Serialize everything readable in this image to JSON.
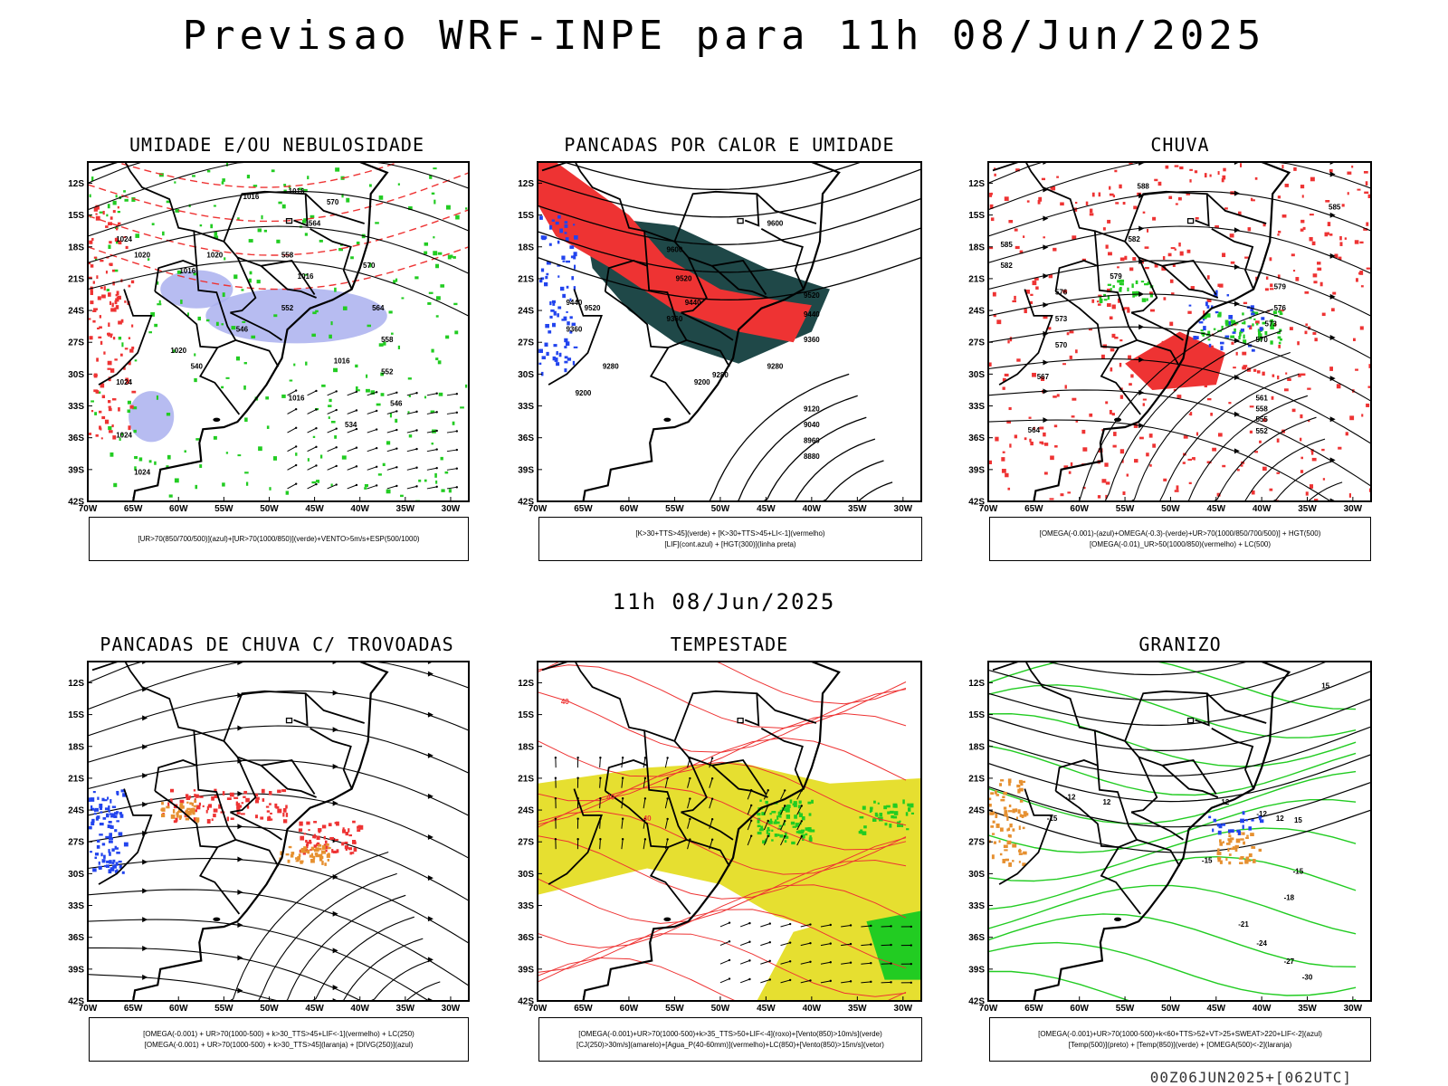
{
  "page": {
    "title": "Previsao WRF-INPE  para 11h 08/Jun/2025",
    "mid_title": "11h 08/Jun/2025",
    "footer": "00Z06JUN2025+[062UTC]"
  },
  "colors": {
    "green": "#22cc22",
    "blue": "#2244ee",
    "red": "#ee3333",
    "lavender": "#aab0ee",
    "darkteal": "#1f4848",
    "orange": "#e69030",
    "yellow": "#e6df30",
    "black": "#000000"
  },
  "chart_data": [
    {
      "type": "map",
      "title": "UMIDADE E/OU NEBULOSIDADE",
      "lat_ticks": [
        "12S",
        "15S",
        "18S",
        "21S",
        "24S",
        "27S",
        "30S",
        "33S",
        "36S",
        "39S",
        "42S"
      ],
      "lon_ticks": [
        "70W",
        "65W",
        "60W",
        "55W",
        "50W",
        "45W",
        "40W",
        "35W",
        "30W"
      ],
      "legend": [
        "[UR>70(850/700/500)](azul)+[UR>70(1000/850)](verde)+VENTO>5m/s+ESP(500/1000)"
      ],
      "contour_labels": [
        "1016",
        "1016",
        "1016",
        "1020",
        "1024",
        "1020",
        "1016",
        "1016",
        "1016",
        "1020",
        "1024",
        "1024",
        "1024",
        "570",
        "564",
        "558",
        "552",
        "546",
        "540",
        "534",
        "570",
        "564",
        "558",
        "552",
        "546"
      ],
      "fields": [
        "blue: UR>70 850/700/500",
        "green: UR>70 1000/850",
        "red dashed: thickness 500/1000",
        "black: pressure / wind vectors"
      ]
    },
    {
      "type": "map",
      "title": "PANCADAS POR CALOR E UMIDADE",
      "lat_ticks": [
        "12S",
        "15S",
        "18S",
        "21S",
        "24S",
        "27S",
        "30S",
        "33S",
        "36S",
        "39S",
        "42S"
      ],
      "lon_ticks": [
        "70W",
        "65W",
        "60W",
        "55W",
        "50W",
        "45W",
        "40W",
        "35W",
        "30W"
      ],
      "legend": [
        "[K>30+TTS>45](verde) + [K>30+TTS>45+LI<-1](vermelho)",
        "[LIF](cont.azul) + [HGT(300)](linha preta)"
      ],
      "contour_labels": [
        "9600",
        "9600",
        "9520",
        "9520",
        "9520",
        "9440",
        "9440",
        "9440",
        "9360",
        "9360",
        "9360",
        "9280",
        "9280",
        "9280",
        "9200",
        "9200",
        "9120",
        "9040",
        "8960",
        "8880"
      ]
    },
    {
      "type": "map",
      "title": "CHUVA",
      "lat_ticks": [
        "12S",
        "15S",
        "18S",
        "21S",
        "24S",
        "27S",
        "30S",
        "33S",
        "36S",
        "39S",
        "42S"
      ],
      "lon_ticks": [
        "70W",
        "65W",
        "60W",
        "55W",
        "50W",
        "45W",
        "40W",
        "35W",
        "30W"
      ],
      "legend": [
        "[OMEGA(-0.001)-(azul)+OMEGA(-0.3)-(verde)+UR>70(1000/850/700/500)] + HGT(500)",
        "[OMEGA(-0.01)_UR>50(1000/850)(vermelho) + LC(500)"
      ],
      "contour_labels": [
        "588",
        "585",
        "582",
        "579",
        "576",
        "573",
        "570",
        "567",
        "564",
        "561",
        "558",
        "555",
        "552",
        "576",
        "573",
        "570",
        "579",
        "585",
        "582"
      ]
    },
    {
      "type": "map",
      "title": "PANCADAS DE CHUVA C/ TROVOADAS",
      "lat_ticks": [
        "12S",
        "15S",
        "18S",
        "21S",
        "24S",
        "27S",
        "30S",
        "33S",
        "36S",
        "39S",
        "42S"
      ],
      "lon_ticks": [
        "70W",
        "65W",
        "60W",
        "55W",
        "50W",
        "45W",
        "40W",
        "35W",
        "30W"
      ],
      "legend": [
        "[OMEGA(-0.001) + UR>70(1000-500) + k>30_TTS>45+LIF<-1](vermelho) + LC(250)",
        "[OMEGA(-0.001) + UR>70(1000-500) + k>30_TTS>45](laranja) + [DIVG(250)](azul)"
      ]
    },
    {
      "type": "map",
      "title": "TEMPESTADE",
      "lat_ticks": [
        "12S",
        "15S",
        "18S",
        "21S",
        "24S",
        "27S",
        "30S",
        "33S",
        "36S",
        "39S",
        "42S"
      ],
      "lon_ticks": [
        "70W",
        "65W",
        "60W",
        "55W",
        "50W",
        "45W",
        "40W",
        "35W",
        "30W"
      ],
      "legend": [
        "[OMEGA(-0.001)+UR>70(1000-500)+k>35_TTS>50+LIF<-4](roxo)+[Vento(850)>10m/s](verde)",
        "[CJ(250)>30m/s](amarelo)+[Agua_P(40-60mm)](vermelho)+LC(850)+[Vento(850)>15m/s](vetor)"
      ],
      "contour_labels": [
        "40",
        "40",
        "40"
      ]
    },
    {
      "type": "map",
      "title": "GRANIZO",
      "lat_ticks": [
        "12S",
        "15S",
        "18S",
        "21S",
        "24S",
        "27S",
        "30S",
        "33S",
        "36S",
        "39S",
        "42S"
      ],
      "lon_ticks": [
        "70W",
        "65W",
        "60W",
        "55W",
        "50W",
        "45W",
        "40W",
        "35W",
        "30W"
      ],
      "legend": [
        "[OMEGA(-0.001)+UR>70(1000-500)+k<60+TTS>52+VT>25+SWEAT>220+LIF<-2](azul)",
        "[Temp(500)](preto) + [Temp(850)](verde) + [OMEGA(500)<-2](laranja)"
      ],
      "contour_labels": [
        "-12",
        "-12",
        "-15",
        "-15",
        "-15",
        "-18",
        "-21",
        "-24",
        "-27",
        "-30",
        "15",
        "15",
        "12",
        "12",
        "12"
      ]
    }
  ]
}
